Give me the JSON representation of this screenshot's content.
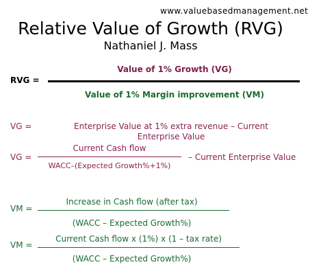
{
  "site_url": "www.valuebasedmanagement.net",
  "title": "Relative Value of Growth (RVG)",
  "author": "Nathaniel J. Mass",
  "rvg": {
    "label": "RVG =",
    "numerator": "Value of 1% Growth (VG)",
    "denominator": "Value of 1% Margin improvement (VM)"
  },
  "vg1": {
    "label": "VG =",
    "line1": "Enterprise Value at 1% extra revenue – Current",
    "line2": "Enterprise Value"
  },
  "vg2": {
    "label": "VG =",
    "numerator": "Current Cash flow",
    "denominator": "WACC–(Expected Growth%+1%)",
    "suffix": "– Current Enterprise Value"
  },
  "vm1": {
    "label": "VM =",
    "numerator": "Increase in Cash flow (after tax)",
    "denominator": "(WACC – Expected Growth%)"
  },
  "vm2": {
    "label": "VM =",
    "numerator": "Current Cash flow  x (1%) x (1 – tax rate)",
    "denominator": "(WACC – Expected Growth%)"
  }
}
